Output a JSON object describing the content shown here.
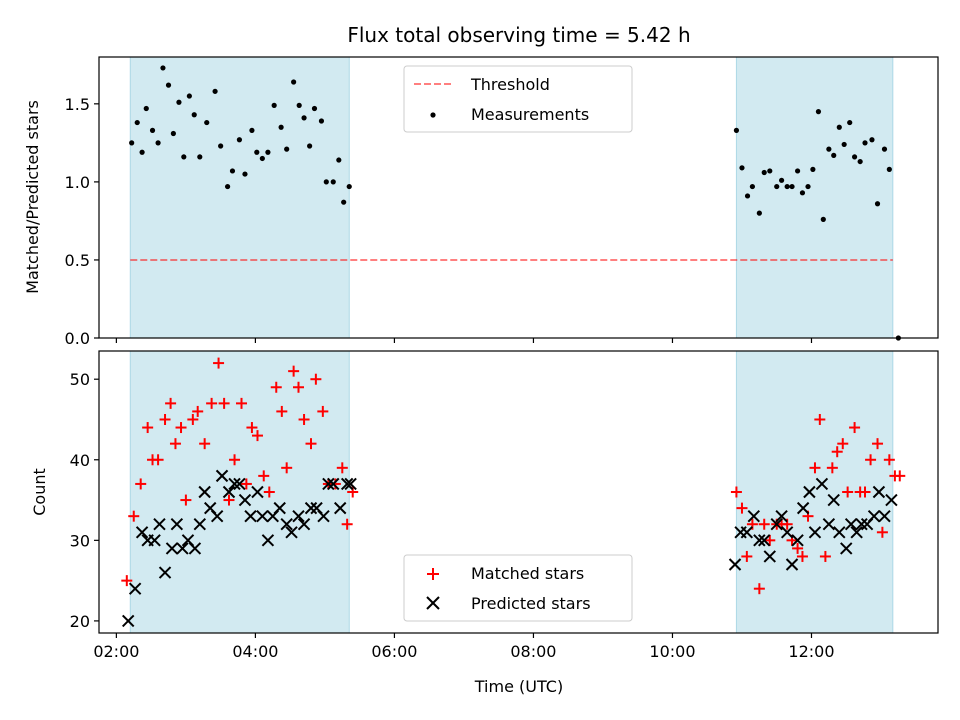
{
  "chart_data": {
    "title": "Flux total observing time = 5.42 h",
    "x_axis": {
      "label": "Time (UTC)",
      "range_hours": [
        1.75,
        13.82
      ],
      "ticks": [
        {
          "hours": 2,
          "label": "02:00"
        },
        {
          "hours": 4,
          "label": "04:00"
        },
        {
          "hours": 6,
          "label": "06:00"
        },
        {
          "hours": 8,
          "label": "08:00"
        },
        {
          "hours": 10,
          "label": "10:00"
        },
        {
          "hours": 12,
          "label": "12:00"
        }
      ]
    },
    "shaded_periods_hours": [
      [
        2.2,
        5.35
      ],
      [
        10.92,
        13.17
      ]
    ],
    "shade_color": "#add8e6",
    "subplots": [
      {
        "type": "scatter",
        "ylabel": "Matched/Predicted stars",
        "ylim": [
          0,
          1.8
        ],
        "yticks": [
          0.0,
          0.5,
          1.0,
          1.5
        ],
        "ytick_labels": [
          "0.0",
          "0.5",
          "1.0",
          "1.5"
        ],
        "threshold": {
          "name": "Threshold",
          "value": 0.5,
          "x_range_hours": [
            2.2,
            13.17
          ],
          "color": "#ff0000",
          "alpha": 0.5
        },
        "legend": {
          "position": "upper center",
          "entries": [
            "Threshold",
            "Measurements"
          ]
        },
        "series": [
          {
            "name": "Measurements",
            "marker": "dot",
            "color": "#000000",
            "points": [
              [
                2.22,
                1.25
              ],
              [
                2.3,
                1.38
              ],
              [
                2.37,
                1.19
              ],
              [
                2.43,
                1.47
              ],
              [
                2.52,
                1.33
              ],
              [
                2.6,
                1.25
              ],
              [
                2.67,
                1.73
              ],
              [
                2.75,
                1.62
              ],
              [
                2.82,
                1.31
              ],
              [
                2.9,
                1.51
              ],
              [
                2.97,
                1.16
              ],
              [
                3.05,
                1.55
              ],
              [
                3.12,
                1.43
              ],
              [
                3.2,
                1.16
              ],
              [
                3.3,
                1.38
              ],
              [
                3.42,
                1.58
              ],
              [
                3.5,
                1.23
              ],
              [
                3.6,
                0.97
              ],
              [
                3.67,
                1.07
              ],
              [
                3.77,
                1.27
              ],
              [
                3.85,
                1.05
              ],
              [
                3.95,
                1.33
              ],
              [
                4.02,
                1.19
              ],
              [
                4.1,
                1.15
              ],
              [
                4.18,
                1.19
              ],
              [
                4.27,
                1.49
              ],
              [
                4.37,
                1.35
              ],
              [
                4.45,
                1.21
              ],
              [
                4.55,
                1.64
              ],
              [
                4.63,
                1.49
              ],
              [
                4.7,
                1.41
              ],
              [
                4.78,
                1.23
              ],
              [
                4.85,
                1.47
              ],
              [
                4.95,
                1.39
              ],
              [
                5.02,
                1.0
              ],
              [
                5.12,
                1.0
              ],
              [
                5.2,
                1.14
              ],
              [
                5.27,
                0.87
              ],
              [
                5.35,
                0.97
              ],
              [
                10.92,
                1.33
              ],
              [
                11.0,
                1.09
              ],
              [
                11.08,
                0.91
              ],
              [
                11.15,
                0.97
              ],
              [
                11.25,
                0.8
              ],
              [
                11.32,
                1.06
              ],
              [
                11.4,
                1.07
              ],
              [
                11.5,
                0.97
              ],
              [
                11.57,
                1.01
              ],
              [
                11.65,
                0.97
              ],
              [
                11.72,
                0.97
              ],
              [
                11.8,
                1.07
              ],
              [
                11.87,
                0.93
              ],
              [
                11.95,
                0.97
              ],
              [
                12.02,
                1.08
              ],
              [
                12.1,
                1.45
              ],
              [
                12.17,
                0.76
              ],
              [
                12.25,
                1.21
              ],
              [
                12.32,
                1.17
              ],
              [
                12.4,
                1.35
              ],
              [
                12.47,
                1.24
              ],
              [
                12.55,
                1.38
              ],
              [
                12.62,
                1.16
              ],
              [
                12.7,
                1.13
              ],
              [
                12.77,
                1.25
              ],
              [
                12.87,
                1.27
              ],
              [
                12.95,
                0.86
              ],
              [
                13.05,
                1.21
              ],
              [
                13.12,
                1.08
              ],
              [
                13.25,
                0.0
              ]
            ]
          }
        ]
      },
      {
        "type": "scatter",
        "ylabel": "Count",
        "ylim": [
          18.5,
          53.5
        ],
        "yticks": [
          20,
          30,
          40,
          50
        ],
        "ytick_labels": [
          "20",
          "30",
          "40",
          "50"
        ],
        "legend": {
          "position": "lower center",
          "entries": [
            "Matched stars",
            "Predicted stars"
          ]
        },
        "series": [
          {
            "name": "Matched stars",
            "marker": "plus",
            "color": "#ff0000",
            "points": [
              [
                2.15,
                25
              ],
              [
                2.25,
                33
              ],
              [
                2.35,
                37
              ],
              [
                2.45,
                44
              ],
              [
                2.52,
                40
              ],
              [
                2.6,
                40
              ],
              [
                2.7,
                45
              ],
              [
                2.78,
                47
              ],
              [
                2.85,
                42
              ],
              [
                2.93,
                44
              ],
              [
                3.0,
                35
              ],
              [
                3.1,
                45
              ],
              [
                3.17,
                46
              ],
              [
                3.27,
                42
              ],
              [
                3.37,
                47
              ],
              [
                3.47,
                52
              ],
              [
                3.55,
                47
              ],
              [
                3.62,
                35
              ],
              [
                3.7,
                40
              ],
              [
                3.8,
                47
              ],
              [
                3.87,
                37
              ],
              [
                3.95,
                44
              ],
              [
                4.03,
                43
              ],
              [
                4.12,
                38
              ],
              [
                4.2,
                36
              ],
              [
                4.3,
                49
              ],
              [
                4.38,
                46
              ],
              [
                4.45,
                39
              ],
              [
                4.55,
                51
              ],
              [
                4.62,
                49
              ],
              [
                4.7,
                45
              ],
              [
                4.8,
                42
              ],
              [
                4.87,
                50
              ],
              [
                4.97,
                46
              ],
              [
                5.05,
                37
              ],
              [
                5.15,
                37
              ],
              [
                5.25,
                39
              ],
              [
                5.32,
                32
              ],
              [
                5.4,
                36
              ],
              [
                10.92,
                36
              ],
              [
                11.0,
                34
              ],
              [
                11.07,
                28
              ],
              [
                11.15,
                32
              ],
              [
                11.25,
                24
              ],
              [
                11.32,
                32
              ],
              [
                11.4,
                30
              ],
              [
                11.5,
                32
              ],
              [
                11.57,
                32
              ],
              [
                11.65,
                32
              ],
              [
                11.72,
                30
              ],
              [
                11.8,
                29
              ],
              [
                11.87,
                28
              ],
              [
                11.95,
                33
              ],
              [
                12.05,
                39
              ],
              [
                12.12,
                45
              ],
              [
                12.2,
                28
              ],
              [
                12.3,
                39
              ],
              [
                12.37,
                41
              ],
              [
                12.45,
                42
              ],
              [
                12.52,
                36
              ],
              [
                12.62,
                44
              ],
              [
                12.7,
                36
              ],
              [
                12.77,
                36
              ],
              [
                12.85,
                40
              ],
              [
                12.95,
                42
              ],
              [
                13.02,
                31
              ],
              [
                13.12,
                40
              ],
              [
                13.2,
                38
              ],
              [
                13.27,
                38
              ]
            ]
          },
          {
            "name": "Predicted stars",
            "marker": "x",
            "color": "#000000",
            "points": [
              [
                2.17,
                20
              ],
              [
                2.27,
                24
              ],
              [
                2.37,
                31
              ],
              [
                2.45,
                30
              ],
              [
                2.55,
                30
              ],
              [
                2.62,
                32
              ],
              [
                2.7,
                26
              ],
              [
                2.8,
                29
              ],
              [
                2.87,
                32
              ],
              [
                2.95,
                29
              ],
              [
                3.03,
                30
              ],
              [
                3.13,
                29
              ],
              [
                3.2,
                32
              ],
              [
                3.27,
                36
              ],
              [
                3.35,
                34
              ],
              [
                3.45,
                33
              ],
              [
                3.52,
                38
              ],
              [
                3.62,
                36
              ],
              [
                3.7,
                37
              ],
              [
                3.77,
                37
              ],
              [
                3.85,
                35
              ],
              [
                3.93,
                33
              ],
              [
                4.03,
                36
              ],
              [
                4.1,
                33
              ],
              [
                4.18,
                30
              ],
              [
                4.25,
                33
              ],
              [
                4.35,
                34
              ],
              [
                4.45,
                32
              ],
              [
                4.52,
                31
              ],
              [
                4.62,
                33
              ],
              [
                4.7,
                32
              ],
              [
                4.8,
                34
              ],
              [
                4.88,
                34
              ],
              [
                4.98,
                33
              ],
              [
                5.05,
                37
              ],
              [
                5.12,
                37
              ],
              [
                5.22,
                34
              ],
              [
                5.32,
                37
              ],
              [
                5.37,
                37
              ],
              [
                10.9,
                27
              ],
              [
                10.98,
                31
              ],
              [
                11.07,
                31
              ],
              [
                11.17,
                33
              ],
              [
                11.25,
                30
              ],
              [
                11.32,
                30
              ],
              [
                11.4,
                28
              ],
              [
                11.5,
                32
              ],
              [
                11.57,
                33
              ],
              [
                11.65,
                31
              ],
              [
                11.72,
                27
              ],
              [
                11.8,
                30
              ],
              [
                11.88,
                34
              ],
              [
                11.97,
                36
              ],
              [
                12.05,
                31
              ],
              [
                12.15,
                37
              ],
              [
                12.25,
                32
              ],
              [
                12.32,
                35
              ],
              [
                12.4,
                31
              ],
              [
                12.5,
                29
              ],
              [
                12.57,
                32
              ],
              [
                12.65,
                31
              ],
              [
                12.72,
                32
              ],
              [
                12.8,
                32
              ],
              [
                12.9,
                33
              ],
              [
                12.97,
                36
              ],
              [
                13.05,
                33
              ],
              [
                13.15,
                35
              ]
            ]
          }
        ]
      }
    ]
  }
}
